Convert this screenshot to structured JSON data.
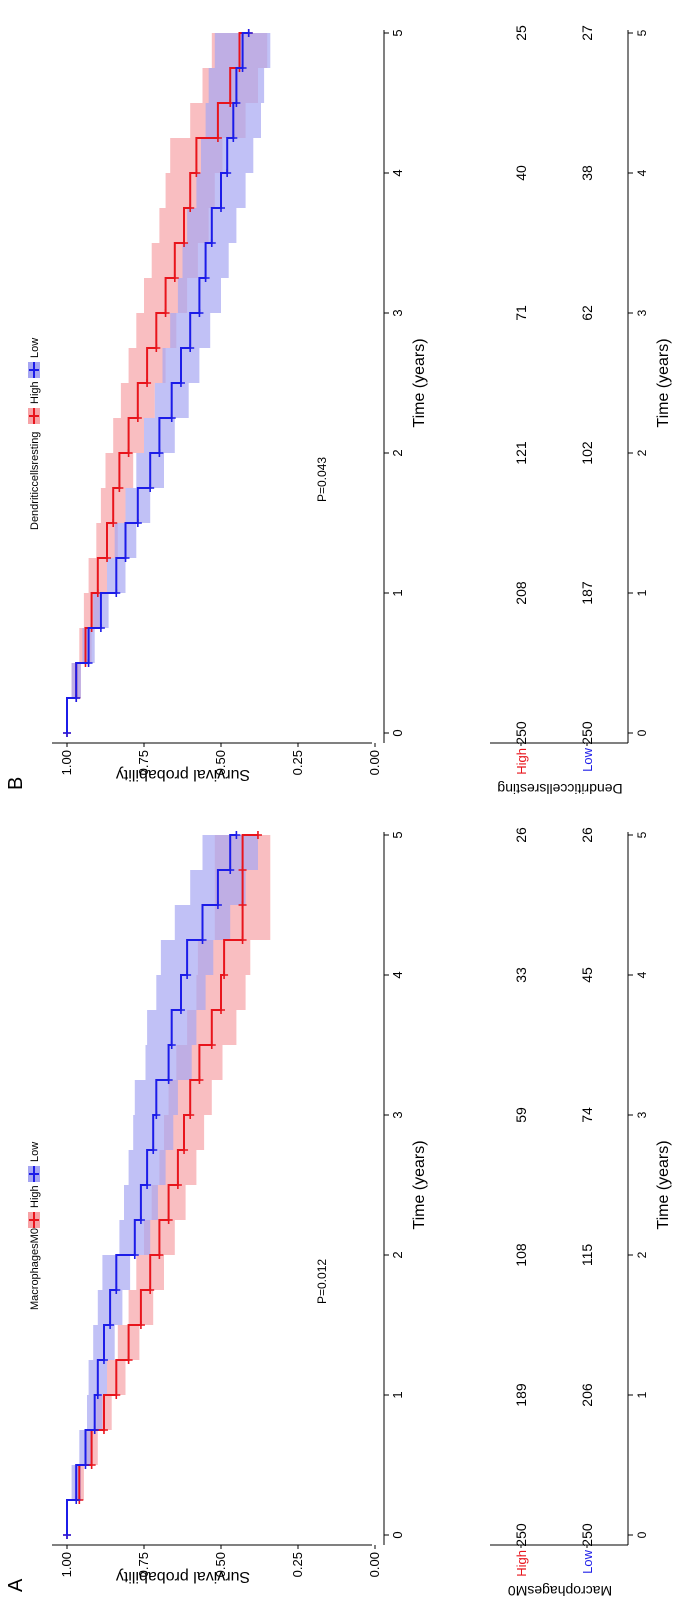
{
  "panels": [
    {
      "letter": "A",
      "variable": "MacrophagesM0",
      "p_value": "P=0.012",
      "legend": {
        "title": "MacrophagesM0",
        "high_label": "High",
        "low_label": "Low"
      },
      "risk_table": {
        "rows": [
          {
            "label": "High",
            "counts": [
              "250",
              "189",
              "108",
              "59",
              "33",
              "26"
            ]
          },
          {
            "label": "Low",
            "counts": [
              "250",
              "206",
              "115",
              "74",
              "45",
              "26"
            ]
          }
        ],
        "xlabel": "Time (years)"
      }
    },
    {
      "letter": "B",
      "variable": "Dendriticcellsresting",
      "p_value": "P=0.043",
      "legend": {
        "title": "Dendriticcellsresting",
        "high_label": "High",
        "low_label": "Low"
      },
      "risk_table": {
        "rows": [
          {
            "label": "High",
            "counts": [
              "250",
              "208",
              "121",
              "71",
              "40",
              "25"
            ]
          },
          {
            "label": "Low",
            "counts": [
              "250",
              "187",
              "102",
              "62",
              "38",
              "27"
            ]
          }
        ],
        "xlabel": "Time (years)"
      }
    }
  ],
  "colors": {
    "high": "#e8141c",
    "low": "#1c1ce8",
    "high_band": "#f7a3a6",
    "low_band": "#a6a6f2"
  },
  "chart_data": [
    {
      "type": "line",
      "subtype": "kaplan-meier survival curve",
      "xlabel": "Time (years)",
      "ylabel": "Survival probability",
      "xlim": [
        0,
        5
      ],
      "ylim": [
        0,
        1
      ],
      "x_ticks": [
        "0",
        "1",
        "2",
        "3",
        "4",
        "5"
      ],
      "y_ticks": [
        "0.00",
        "0.25",
        "0.50",
        "0.75",
        "1.00"
      ],
      "legend_title": "MacrophagesM0",
      "legend_position": "top",
      "annotation": "P=0.012",
      "series": [
        {
          "name": "High",
          "x": [
            0,
            0.25,
            0.5,
            0.75,
            1.0,
            1.25,
            1.5,
            1.75,
            2.0,
            2.25,
            2.5,
            2.75,
            3.0,
            3.25,
            3.5,
            3.75,
            4.0,
            4.25,
            4.5,
            4.75,
            5.0
          ],
          "y": [
            1.0,
            0.96,
            0.92,
            0.88,
            0.84,
            0.8,
            0.76,
            0.73,
            0.7,
            0.67,
            0.64,
            0.62,
            0.6,
            0.57,
            0.53,
            0.5,
            0.49,
            0.43,
            0.43,
            0.43,
            0.38
          ],
          "ci_half_width": [
            0,
            0.015,
            0.02,
            0.025,
            0.03,
            0.035,
            0.04,
            0.045,
            0.05,
            0.055,
            0.06,
            0.065,
            0.07,
            0.075,
            0.08,
            0.08,
            0.085,
            0.09,
            0.09,
            0.09,
            0.09
          ]
        },
        {
          "name": "Low",
          "x": [
            0,
            0.25,
            0.5,
            0.75,
            1.0,
            1.25,
            1.5,
            1.75,
            2.0,
            2.25,
            2.5,
            2.75,
            3.0,
            3.25,
            3.5,
            3.75,
            4.0,
            4.25,
            4.5,
            4.75,
            5.0
          ],
          "y": [
            1.0,
            0.97,
            0.94,
            0.91,
            0.9,
            0.88,
            0.86,
            0.84,
            0.78,
            0.76,
            0.74,
            0.72,
            0.71,
            0.67,
            0.66,
            0.63,
            0.61,
            0.56,
            0.51,
            0.47,
            0.45
          ],
          "ci_half_width": [
            0,
            0.015,
            0.02,
            0.025,
            0.03,
            0.035,
            0.04,
            0.045,
            0.05,
            0.055,
            0.06,
            0.065,
            0.07,
            0.075,
            0.08,
            0.08,
            0.085,
            0.09,
            0.09,
            0.09,
            0.09
          ]
        }
      ]
    },
    {
      "type": "line",
      "subtype": "kaplan-meier survival curve",
      "xlabel": "Time (years)",
      "ylabel": "Survival probability",
      "xlim": [
        0,
        5
      ],
      "ylim": [
        0,
        1
      ],
      "x_ticks": [
        "0",
        "1",
        "2",
        "3",
        "4",
        "5"
      ],
      "y_ticks": [
        "0.00",
        "0.25",
        "0.50",
        "0.75",
        "1.00"
      ],
      "legend_title": "Dendriticcellsresting",
      "legend_position": "top",
      "annotation": "P=0.043",
      "series": [
        {
          "name": "High",
          "x": [
            0,
            0.25,
            0.5,
            0.75,
            1.0,
            1.25,
            1.5,
            1.75,
            2.0,
            2.25,
            2.5,
            2.75,
            3.0,
            3.25,
            3.5,
            3.75,
            4.0,
            4.25,
            4.5,
            4.75,
            5.0
          ],
          "y": [
            1.0,
            0.97,
            0.94,
            0.92,
            0.9,
            0.87,
            0.85,
            0.83,
            0.8,
            0.77,
            0.74,
            0.71,
            0.68,
            0.65,
            0.62,
            0.6,
            0.58,
            0.51,
            0.47,
            0.44,
            0.41
          ],
          "ci_half_width": [
            0,
            0.015,
            0.02,
            0.025,
            0.03,
            0.035,
            0.04,
            0.045,
            0.05,
            0.055,
            0.06,
            0.065,
            0.07,
            0.075,
            0.08,
            0.08,
            0.085,
            0.09,
            0.09,
            0.09,
            0.09
          ]
        },
        {
          "name": "Low",
          "x": [
            0,
            0.25,
            0.5,
            0.75,
            1.0,
            1.25,
            1.5,
            1.75,
            2.0,
            2.25,
            2.5,
            2.75,
            3.0,
            3.25,
            3.5,
            3.75,
            4.0,
            4.25,
            4.5,
            4.75,
            5.0
          ],
          "y": [
            1.0,
            0.97,
            0.93,
            0.89,
            0.84,
            0.81,
            0.77,
            0.73,
            0.7,
            0.66,
            0.63,
            0.6,
            0.57,
            0.55,
            0.53,
            0.5,
            0.48,
            0.46,
            0.45,
            0.43,
            0.41
          ],
          "ci_half_width": [
            0,
            0.015,
            0.02,
            0.025,
            0.03,
            0.035,
            0.04,
            0.045,
            0.05,
            0.055,
            0.06,
            0.065,
            0.07,
            0.075,
            0.08,
            0.08,
            0.085,
            0.09,
            0.09,
            0.09,
            0.09
          ]
        }
      ]
    }
  ]
}
